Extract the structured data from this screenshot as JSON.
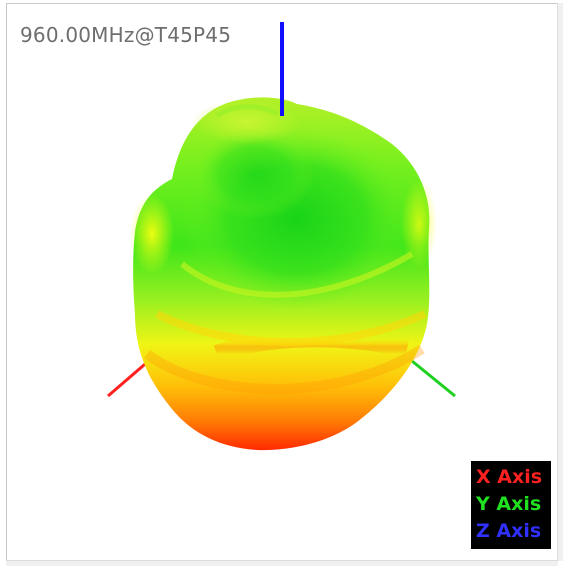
{
  "viewer": {
    "measurement_label": "960.00MHz@T45P45"
  },
  "legend": {
    "x_axis": {
      "label": "X Axis",
      "color": "#ff2020"
    },
    "y_axis": {
      "label": "Y Axis",
      "color": "#20e020"
    },
    "z_axis": {
      "label": "Z Axis",
      "color": "#2020ff"
    }
  },
  "pattern_colors": {
    "high": "#22dd22",
    "mid": "#ffff00",
    "low": "#ff2000"
  },
  "scrollbars": [
    "vertical",
    "horizontal"
  ]
}
